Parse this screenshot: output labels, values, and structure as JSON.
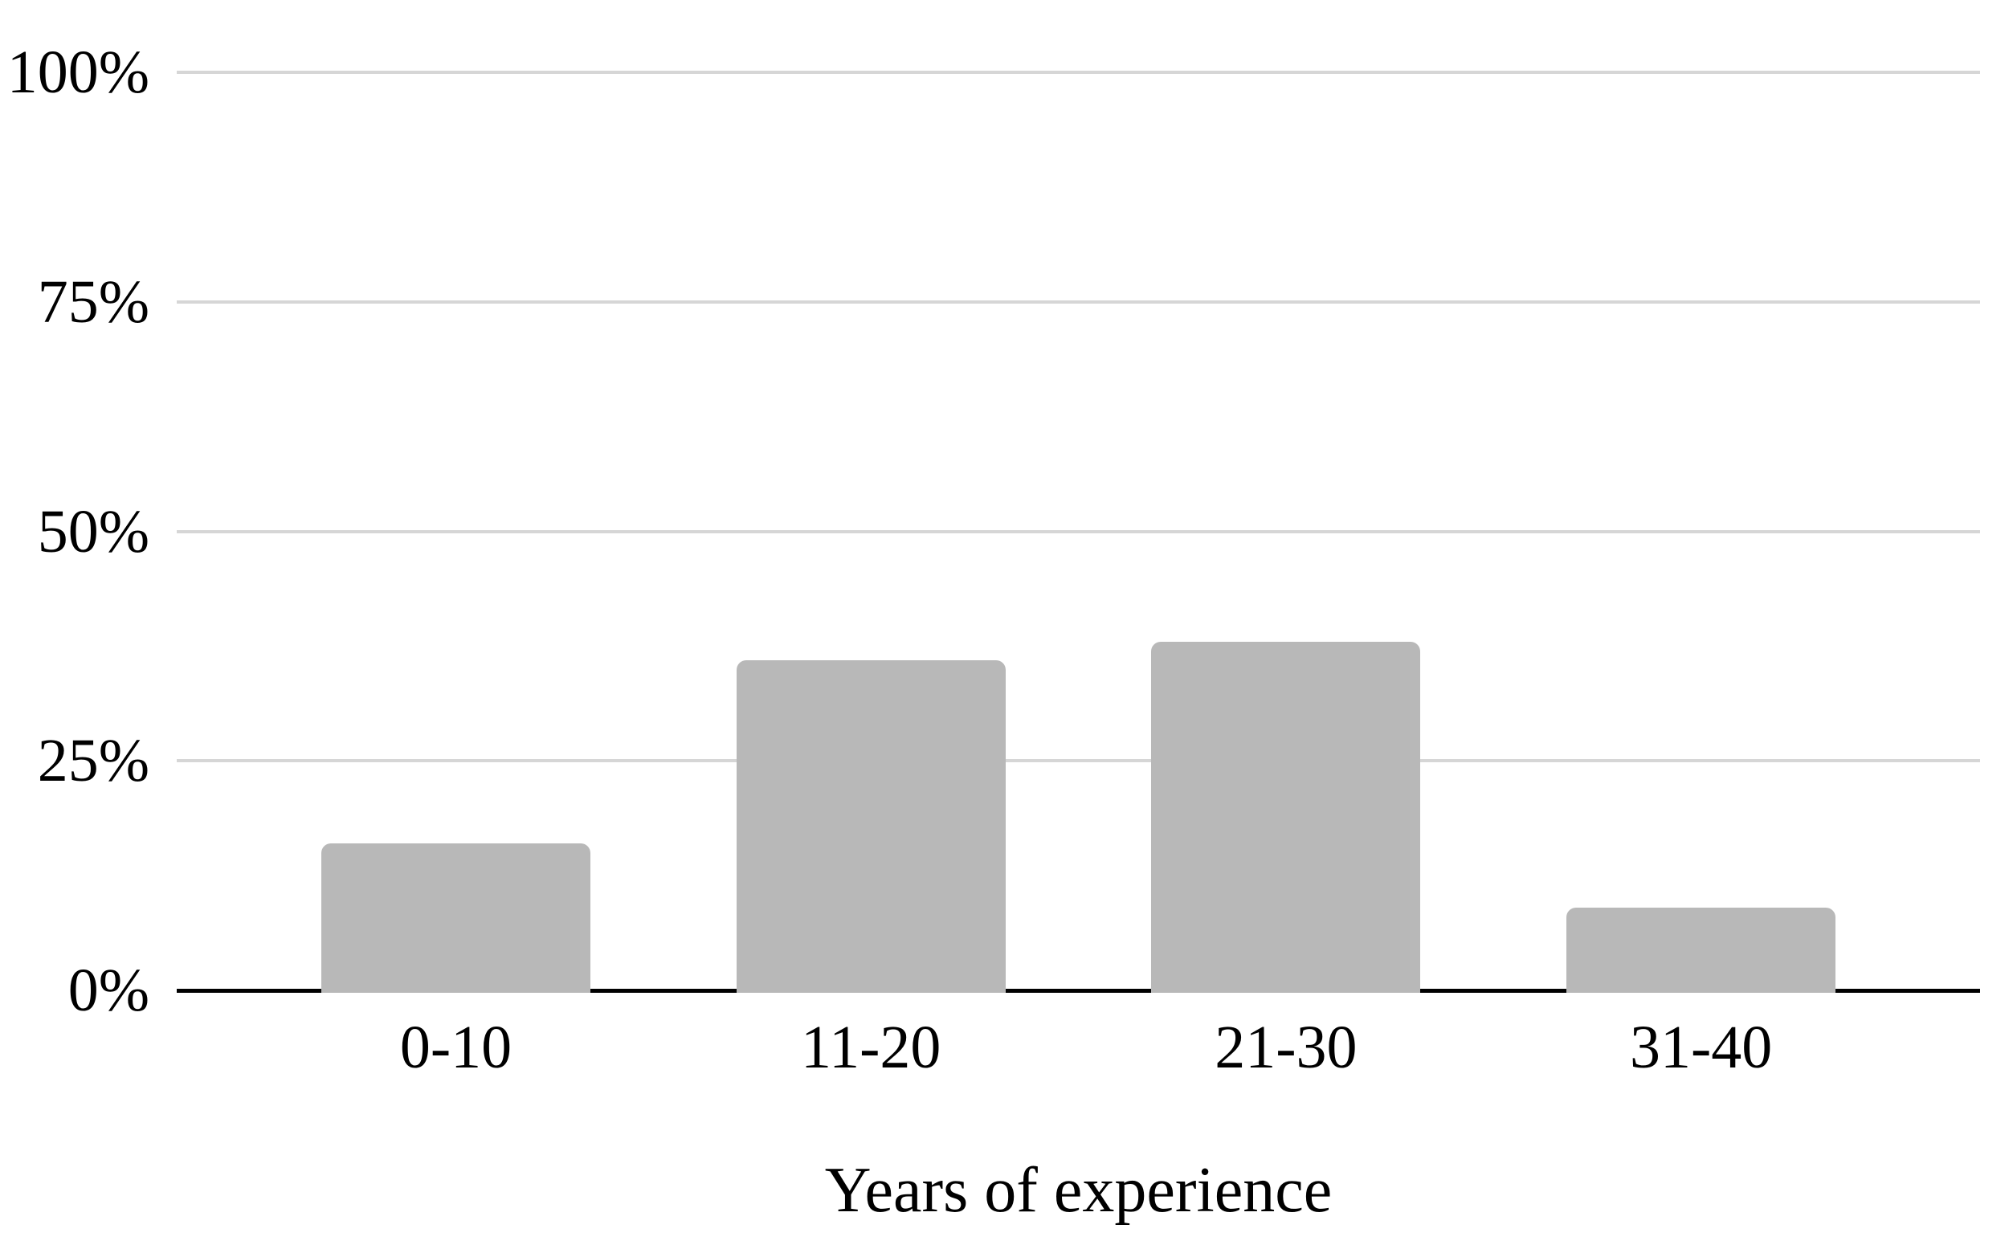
{
  "chart_data": {
    "type": "bar",
    "title": "",
    "xlabel": "Years of experience",
    "ylabel": "",
    "categories": [
      "0-10",
      "11-20",
      "21-30",
      "31-40"
    ],
    "values": [
      16,
      36,
      38,
      9
    ],
    "value_unit": "%",
    "ylim": [
      0,
      100
    ],
    "y_tick_values": [
      100,
      75,
      50,
      25,
      0
    ],
    "y_tick_labels": [
      "100%",
      "75%",
      "50%",
      "25%",
      "0%"
    ],
    "grid": "horizontal gridlines",
    "legend": "none",
    "colors": {
      "bar": "#b8b8b8",
      "gridline": "#d6d6d6",
      "axis": "#000000",
      "text": "#000000",
      "background": "#ffffff"
    }
  }
}
